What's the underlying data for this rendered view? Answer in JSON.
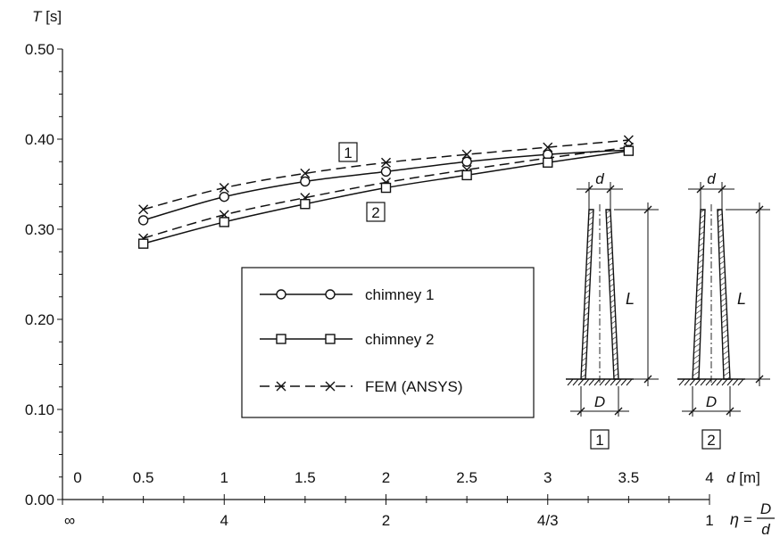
{
  "chart_data": {
    "type": "line",
    "y_axis": {
      "label_symbol": "T",
      "label_unit": "[s]",
      "ylim": [
        0,
        0.5
      ],
      "ticks": [
        "0.00",
        "0.10",
        "0.20",
        "0.30",
        "0.40",
        "0.50"
      ],
      "minor_step": 0.025
    },
    "x_axis_primary": {
      "label_symbol": "d",
      "label_unit": "[m]",
      "xlim": [
        0,
        4
      ],
      "ticks": [
        "0",
        "0.5",
        "1",
        "1.5",
        "2",
        "2.5",
        "3",
        "3.5",
        "4"
      ],
      "minor_step": 0.25
    },
    "x_axis_secondary": {
      "label_symbol": "η",
      "label_eq": "=",
      "label_num": "D",
      "label_den": "d",
      "ticks": [
        {
          "d": 0,
          "label": "∞"
        },
        {
          "d": 1,
          "label": "4"
        },
        {
          "d": 2,
          "label": "2"
        },
        {
          "d": 3,
          "label": "4/3"
        },
        {
          "d": 4,
          "label": "1"
        }
      ]
    },
    "x": [
      0.5,
      1,
      1.5,
      2,
      2.5,
      3,
      3.5
    ],
    "series": [
      {
        "name": "chimney 1",
        "marker": "circle",
        "dash": "solid",
        "values": [
          0.31,
          0.336,
          0.353,
          0.364,
          0.375,
          0.383,
          0.388
        ]
      },
      {
        "name": "chimney 2",
        "marker": "square",
        "dash": "solid",
        "values": [
          0.284,
          0.308,
          0.328,
          0.346,
          0.36,
          0.374,
          0.387
        ]
      },
      {
        "name": "FEM (ANSYS)",
        "marker": "x",
        "dash": "dashed",
        "values": [
          0.322,
          0.346,
          0.362,
          0.374,
          0.383,
          0.391,
          0.399
        ]
      },
      {
        "name": "",
        "marker": "x",
        "dash": "dashed",
        "values": [
          0.29,
          0.316,
          0.335,
          0.352,
          0.366,
          0.379,
          0.391
        ]
      }
    ],
    "curve_labels": [
      "1",
      "2"
    ],
    "grid": false,
    "legend": "center-left"
  },
  "inset": {
    "chimney_labels": [
      "1",
      "2"
    ],
    "dim_top": "d",
    "dim_bottom": "D",
    "dim_height": "L"
  }
}
